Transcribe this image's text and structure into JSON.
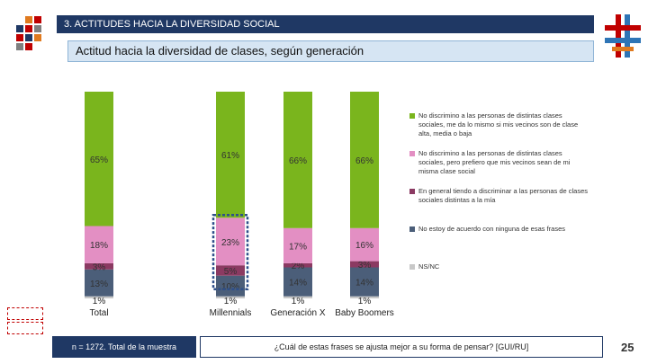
{
  "header": {
    "section_title": "3. ACTITUDES HACIA LA DIVERSIDAD SOCIAL"
  },
  "subtitle": "Actitud hacia la diversidad de clases, según generación",
  "footer": {
    "sample_note": "n = 1272. Total de la muestra",
    "question": "¿Cuál de estas frases se ajusta mejor a su forma de pensar? [GUI/RU]",
    "page_number": "25"
  },
  "colors": {
    "header_bg": "#1f3864",
    "no_discrimino": "#7ab51d",
    "prefiero": "#e38fc3",
    "discriminar": "#8b3a62",
    "ninguna": "#4b5e79",
    "nsnc": "#c8c8c8"
  },
  "chart_data": {
    "type": "bar",
    "stacked": true,
    "categories": [
      "Total",
      "Millennials",
      "Generación X",
      "Baby Boomers"
    ],
    "series": [
      {
        "name": "No discrimino a las personas de distintas clases sociales, me da lo mismo si mis vecinos son de clase alta, media o baja",
        "color": "#7ab51d",
        "values": [
          65,
          61,
          66,
          66
        ],
        "labels": [
          "65%",
          "61%",
          "66%",
          "66%"
        ]
      },
      {
        "name": "No discrimino a las personas de distintas clases sociales, pero prefiero que mis vecinos sean de mi misma clase social",
        "color": "#e38fc3",
        "values": [
          18,
          23,
          17,
          16
        ],
        "labels": [
          "18%",
          "23%",
          "17%",
          "16%"
        ]
      },
      {
        "name": "En general tiendo a discriminar a las personas de clases sociales distintas a la mía",
        "color": "#8b3a62",
        "values": [
          3,
          5,
          2,
          3
        ],
        "labels": [
          "3%",
          "5%",
          "2%",
          "3%"
        ]
      },
      {
        "name": "No estoy de acuerdo con ninguna de esas frases",
        "color": "#4b5e79",
        "values": [
          13,
          10,
          14,
          14
        ],
        "labels": [
          "13%",
          "10%",
          "14%",
          "14%"
        ]
      },
      {
        "name": "NS/NC",
        "color": "#c8c8c8",
        "values": [
          1,
          1,
          1,
          1
        ],
        "labels": [
          "1%",
          "1%",
          "1%",
          "1%"
        ]
      }
    ],
    "highlight_category": "Millennials"
  }
}
